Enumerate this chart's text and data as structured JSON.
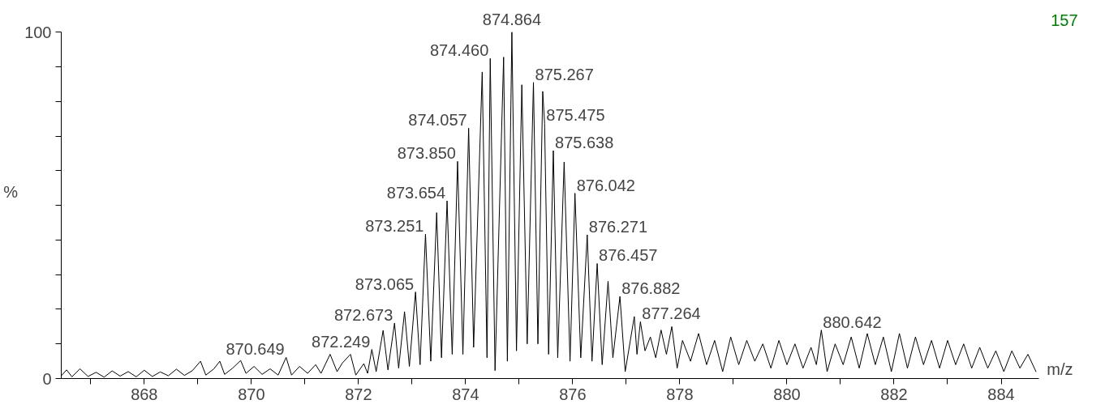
{
  "chart_data": {
    "type": "line",
    "xlabel": "m/z",
    "ylabel": "%",
    "xlim": [
      866.45,
      884.7
    ],
    "ylim": [
      0,
      100
    ],
    "xticks": [
      {
        "value": 867,
        "label": null
      },
      868,
      {
        "value": 869,
        "label": null
      },
      870,
      {
        "value": 871,
        "label": null
      },
      872,
      {
        "value": 873,
        "label": null
      },
      874,
      {
        "value": 875,
        "label": null
      },
      876,
      {
        "value": 877,
        "label": null
      },
      878,
      {
        "value": 879,
        "label": null
      },
      880,
      {
        "value": 881,
        "label": null
      },
      882,
      {
        "value": 883,
        "label": null
      },
      884
    ],
    "yticks": [
      0,
      {
        "value": 10,
        "label": null
      },
      {
        "value": 20,
        "label": null
      },
      {
        "value": 30,
        "label": null
      },
      {
        "value": 40,
        "label": null
      },
      {
        "value": 50,
        "label": null
      },
      {
        "value": 60,
        "label": null
      },
      {
        "value": 70,
        "label": null
      },
      {
        "value": 80,
        "label": null
      },
      {
        "value": 90,
        "label": null
      },
      100
    ],
    "grid": false,
    "marker": "none",
    "line_style": "solid",
    "series": [
      {
        "color": "#000000",
        "x": [
          866.45,
          866.55,
          866.65,
          866.8,
          866.95,
          867.1,
          867.25,
          867.4,
          867.55,
          867.7,
          867.85,
          868.0,
          868.15,
          868.3,
          868.45,
          868.6,
          868.75,
          868.9,
          869.05,
          869.15,
          869.3,
          869.41,
          869.5,
          869.65,
          869.8,
          869.9,
          870.05,
          870.2,
          870.35,
          870.5,
          870.649,
          870.75,
          870.9,
          871.05,
          871.2,
          871.3,
          871.47,
          871.6,
          871.7,
          871.85,
          871.95,
          872.1,
          872.17,
          872.249,
          872.33,
          872.46,
          872.55,
          872.673,
          872.75,
          872.86,
          872.95,
          873.065,
          873.15,
          873.251,
          873.35,
          873.46,
          873.55,
          873.654,
          873.75,
          873.85,
          873.95,
          874.057,
          874.15,
          874.31,
          874.4,
          874.46,
          874.55,
          874.71,
          874.78,
          874.864,
          874.95,
          875.05,
          875.15,
          875.267,
          875.35,
          875.44,
          875.475,
          875.55,
          875.638,
          875.72,
          875.84,
          875.95,
          876.042,
          876.15,
          876.271,
          876.36,
          876.457,
          876.55,
          876.66,
          876.75,
          876.882,
          876.98,
          877.15,
          877.2,
          877.264,
          877.35,
          877.45,
          877.55,
          877.65,
          877.75,
          877.85,
          877.95,
          878.05,
          878.2,
          878.35,
          878.5,
          878.65,
          878.8,
          878.95,
          879.1,
          879.25,
          879.4,
          879.55,
          879.7,
          879.85,
          880.0,
          880.15,
          880.3,
          880.45,
          880.55,
          880.642,
          880.75,
          880.9,
          881.05,
          881.2,
          881.35,
          881.5,
          881.65,
          881.8,
          881.95,
          882.1,
          882.25,
          882.4,
          882.55,
          882.7,
          882.85,
          883.0,
          883.15,
          883.3,
          883.45,
          883.6,
          883.75,
          883.9,
          884.05,
          884.2,
          884.35,
          884.5,
          884.65
        ],
        "values": [
          0.8,
          2.5,
          0.5,
          2.8,
          0.6,
          1.8,
          0.4,
          2.2,
          0.7,
          2.0,
          0.5,
          2.4,
          0.6,
          1.9,
          0.8,
          2.7,
          0.9,
          2.3,
          5.0,
          1.0,
          2.8,
          5.0,
          1.2,
          3.0,
          5.2,
          1.5,
          3.5,
          1.2,
          2.8,
          1.0,
          6.1,
          1.0,
          3.5,
          1.5,
          4.0,
          1.5,
          7.0,
          2.0,
          4.5,
          7.0,
          1.0,
          4.3,
          1.5,
          8.4,
          2.0,
          13.9,
          2.5,
          16,
          3.0,
          19.3,
          3.5,
          25,
          4.0,
          41.7,
          5.0,
          47.9,
          6.0,
          51.3,
          7.0,
          62.7,
          7.0,
          72.3,
          9.0,
          88.5,
          6.0,
          92.4,
          2.3,
          92.8,
          5.0,
          100,
          8.0,
          84.8,
          10,
          85.5,
          10,
          82.9,
          73.7,
          7.0,
          65.8,
          6.0,
          62.5,
          5.0,
          53.5,
          6.0,
          41.5,
          5.0,
          33.2,
          4.0,
          28.1,
          6.0,
          23.7,
          2.0,
          17.9,
          7.0,
          16.4,
          8.0,
          12.0,
          6.0,
          14,
          7.0,
          15.0,
          3.0,
          11,
          5,
          13,
          4,
          11,
          2,
          12,
          4,
          11,
          5,
          10,
          3,
          11,
          4,
          10,
          3,
          9,
          4,
          14.0,
          2,
          10,
          4,
          12,
          3,
          13,
          4,
          12,
          2,
          13,
          3,
          12,
          4,
          11,
          3,
          11,
          4,
          10,
          3,
          9,
          3,
          8,
          2,
          8,
          3,
          7,
          2
        ]
      }
    ],
    "annotations": [
      {
        "text": "870.649",
        "x": 870.649,
        "y": 6.1
      },
      {
        "text": "872.249",
        "x": 872.249,
        "y": 8.4
      },
      {
        "text": "872.673",
        "x": 872.673,
        "y": 16
      },
      {
        "text": "873.065",
        "x": 873.065,
        "y": 25
      },
      {
        "text": "873.251",
        "x": 873.251,
        "y": 41.7
      },
      {
        "text": "873.654",
        "x": 873.654,
        "y": 51.3
      },
      {
        "text": "873.850",
        "x": 873.85,
        "y": 62.7
      },
      {
        "text": "874.057",
        "x": 874.057,
        "y": 72.3
      },
      {
        "text": "874.460",
        "x": 874.46,
        "y": 92.4
      },
      {
        "text": "874.864",
        "x": 874.864,
        "y": 100
      },
      {
        "text": "875.267",
        "x": 875.267,
        "y": 85.5
      },
      {
        "text": "875.475",
        "x": 875.475,
        "y": 73.7
      },
      {
        "text": "875.638",
        "x": 875.638,
        "y": 65.8
      },
      {
        "text": "876.042",
        "x": 876.042,
        "y": 53.5
      },
      {
        "text": "876.271",
        "x": 876.271,
        "y": 41.5
      },
      {
        "text": "876.457",
        "x": 876.457,
        "y": 33.2
      },
      {
        "text": "876.882",
        "x": 876.882,
        "y": 23.7
      },
      {
        "text": "877.264",
        "x": 877.264,
        "y": 16.4
      },
      {
        "text": "880.642",
        "x": 880.642,
        "y": 14.0
      },
      "157"
    ]
  }
}
